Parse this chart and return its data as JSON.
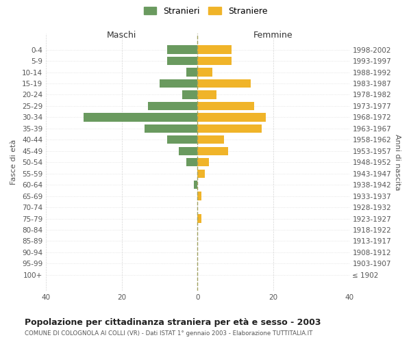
{
  "age_groups": [
    "0-4",
    "5-9",
    "10-14",
    "15-19",
    "20-24",
    "25-29",
    "30-34",
    "35-39",
    "40-44",
    "45-49",
    "50-54",
    "55-59",
    "60-64",
    "65-69",
    "70-74",
    "75-79",
    "80-84",
    "85-89",
    "90-94",
    "95-99",
    "100+"
  ],
  "birth_years": [
    "1998-2002",
    "1993-1997",
    "1988-1992",
    "1983-1987",
    "1978-1982",
    "1973-1977",
    "1968-1972",
    "1963-1967",
    "1958-1962",
    "1953-1957",
    "1948-1952",
    "1943-1947",
    "1938-1942",
    "1933-1937",
    "1928-1932",
    "1923-1927",
    "1918-1922",
    "1913-1917",
    "1908-1912",
    "1903-1907",
    "≤ 1902"
  ],
  "maschi": [
    8,
    8,
    3,
    10,
    4,
    13,
    30,
    14,
    8,
    5,
    3,
    0,
    1,
    0,
    0,
    0,
    0,
    0,
    0,
    0,
    0
  ],
  "femmine": [
    9,
    9,
    4,
    14,
    5,
    15,
    18,
    17,
    7,
    8,
    3,
    2,
    0,
    1,
    0,
    1,
    0,
    0,
    0,
    0,
    0
  ],
  "male_color": "#6a9a5f",
  "female_color": "#f0b429",
  "xlim": 40,
  "title": "Popolazione per cittadinanza straniera per età e sesso - 2003",
  "subtitle": "COMUNE DI COLOGNOLA AI COLLI (VR) - Dati ISTAT 1° gennaio 2003 - Elaborazione TUTTITALIA.IT",
  "ylabel_left": "Fasce di età",
  "ylabel_right": "Anni di nascita",
  "legend_male": "Stranieri",
  "legend_female": "Straniere",
  "maschi_header": "Maschi",
  "femmine_header": "Femmine",
  "bg_color": "#ffffff",
  "grid_color": "#cccccc"
}
